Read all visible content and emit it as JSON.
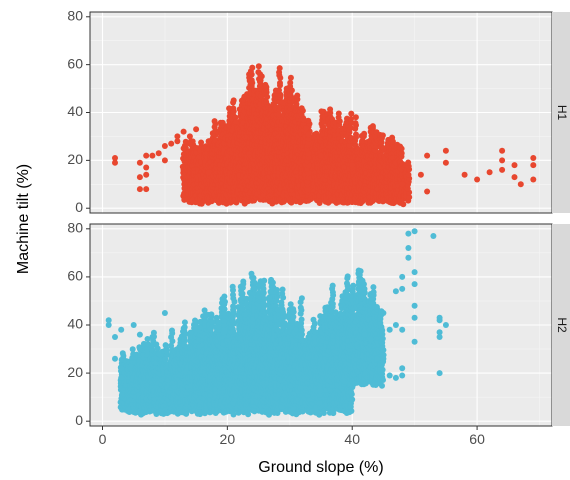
{
  "chart_data": {
    "type": "scatter",
    "xlabel": "Ground slope (%)",
    "ylabel": "Machine tilt (%)",
    "xlim": [
      -2,
      72
    ],
    "ylim": [
      -2,
      82
    ],
    "x_ticks": [
      "0",
      "20",
      "40",
      "60"
    ],
    "x_tick_values": [
      0,
      20,
      40,
      60
    ],
    "y_ticks": [
      "0",
      "20",
      "40",
      "60",
      "80"
    ],
    "y_tick_values": [
      0,
      20,
      40,
      60,
      80
    ],
    "grid": true,
    "legend": "none",
    "panels": [
      {
        "strip": "H1",
        "color": "#e8472f",
        "points_approx": [
          [
            2,
            19
          ],
          [
            2,
            21
          ],
          [
            6,
            19
          ],
          [
            6,
            8
          ],
          [
            6,
            13
          ],
          [
            7,
            8
          ],
          [
            7,
            14
          ],
          [
            7,
            17
          ],
          [
            7,
            22
          ],
          [
            8,
            22
          ],
          [
            9,
            23
          ],
          [
            10,
            26
          ],
          [
            11,
            27
          ],
          [
            12,
            30
          ],
          [
            13,
            32
          ],
          [
            14,
            30
          ],
          [
            10,
            20
          ],
          [
            12,
            28
          ],
          [
            13,
            25
          ],
          [
            14,
            27
          ],
          [
            15,
            33
          ],
          [
            17,
            28
          ],
          [
            17,
            15
          ],
          [
            35,
            22
          ],
          [
            40,
            18
          ],
          [
            45,
            25
          ],
          [
            48,
            10
          ],
          [
            51,
            14
          ],
          [
            52,
            7
          ],
          [
            52,
            22
          ],
          [
            55,
            24
          ],
          [
            55,
            19
          ],
          [
            58,
            14
          ],
          [
            60,
            12
          ],
          [
            62,
            15
          ],
          [
            64,
            16
          ],
          [
            64,
            20
          ],
          [
            64,
            24
          ],
          [
            66,
            13
          ],
          [
            66,
            18
          ],
          [
            67,
            10
          ],
          [
            69,
            12
          ],
          [
            69,
            18
          ],
          [
            69,
            21
          ]
        ],
        "dense_bands": [
          {
            "x_from": 13,
            "x_to": 49,
            "y_min": 2,
            "y_max": 45
          },
          {
            "x_from": 20,
            "x_to": 33,
            "y_min": 5,
            "y_max": 62
          }
        ]
      },
      {
        "strip": "H2",
        "color": "#4fbcd6",
        "points_approx": [
          [
            1,
            40
          ],
          [
            1,
            42
          ],
          [
            2,
            35
          ],
          [
            2,
            26
          ],
          [
            3,
            38
          ],
          [
            3,
            22
          ],
          [
            3,
            18
          ],
          [
            5,
            40
          ],
          [
            6,
            30
          ],
          [
            6,
            36
          ],
          [
            8,
            35
          ],
          [
            9,
            28
          ],
          [
            10,
            45
          ],
          [
            42,
            36
          ],
          [
            43,
            34
          ],
          [
            44,
            26
          ],
          [
            45,
            45
          ],
          [
            45,
            26
          ],
          [
            46,
            19
          ],
          [
            46,
            38
          ],
          [
            47,
            40
          ],
          [
            47,
            18
          ],
          [
            47,
            54
          ],
          [
            48,
            60
          ],
          [
            48,
            55
          ],
          [
            48,
            38
          ],
          [
            48,
            22
          ],
          [
            48,
            19
          ],
          [
            49,
            68
          ],
          [
            49,
            72
          ],
          [
            49,
            78
          ],
          [
            50,
            79
          ],
          [
            50,
            62
          ],
          [
            50,
            57
          ],
          [
            50,
            48
          ],
          [
            50,
            43
          ],
          [
            50,
            33
          ],
          [
            53,
            77
          ],
          [
            54,
            42
          ],
          [
            54,
            37
          ],
          [
            54,
            35
          ],
          [
            54,
            20
          ],
          [
            54,
            43
          ],
          [
            55,
            40
          ]
        ],
        "dense_bands": [
          {
            "x_from": 3,
            "x_to": 40,
            "y_min": 3,
            "y_max": 45
          },
          {
            "x_from": 15,
            "x_to": 35,
            "y_min": 5,
            "y_max": 62
          },
          {
            "x_from": 35,
            "x_to": 45,
            "y_min": 15,
            "y_max": 65
          }
        ]
      }
    ]
  }
}
